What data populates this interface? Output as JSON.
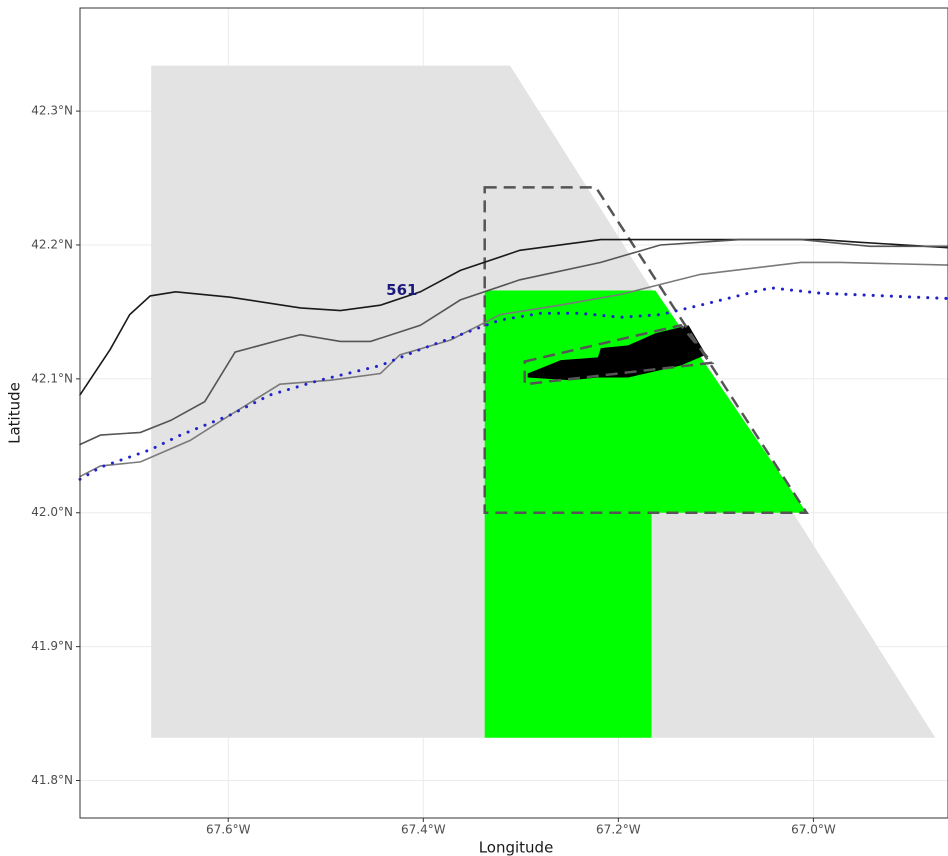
{
  "chart_data": {
    "type": "map",
    "x_label": "Longitude",
    "y_label": "Latitude",
    "xlim": [
      -67.752,
      -66.862
    ],
    "ylim": [
      41.772,
      42.377
    ],
    "xticks": [
      {
        "value": -67.6,
        "label": "67.6°W"
      },
      {
        "value": -67.4,
        "label": "67.4°W"
      },
      {
        "value": -67.2,
        "label": "67.2°W"
      },
      {
        "value": -67.0,
        "label": "67.0°W"
      }
    ],
    "yticks": [
      {
        "value": 41.8,
        "label": "41.8°N"
      },
      {
        "value": 41.9,
        "label": "41.9°N"
      },
      {
        "value": 42.0,
        "label": "42.0°N"
      },
      {
        "value": 42.1,
        "label": "42.1°N"
      },
      {
        "value": 42.2,
        "label": "42.2°N"
      },
      {
        "value": 42.3,
        "label": "42.3°N"
      }
    ],
    "grid": true,
    "polygons": [
      {
        "fill": "#e3e3e3",
        "stroke": "none",
        "dashed": false,
        "lon": [
          -67.679,
          -67.311,
          -66.875,
          -67.679
        ],
        "lat": [
          42.334,
          42.334,
          41.832,
          41.832
        ]
      },
      {
        "fill": "#00ff00",
        "stroke": "none",
        "dashed": false,
        "lon": [
          -67.337,
          -67.162,
          -67.007,
          -67.166,
          -67.166,
          -67.337
        ],
        "lat": [
          42.166,
          42.166,
          42.0,
          42.0,
          41.832,
          41.832
        ]
      },
      {
        "fill": "#000000",
        "stroke": "none",
        "dashed": false,
        "lon": [
          -67.293,
          -67.259,
          -67.221,
          -67.218,
          -67.19,
          -67.162,
          -67.128,
          -67.11,
          -67.136,
          -67.19,
          -67.221,
          -67.249,
          -67.293
        ],
        "lat": [
          42.104,
          42.114,
          42.116,
          42.123,
          42.125,
          42.134,
          42.14,
          42.118,
          42.11,
          42.101,
          42.101,
          42.099,
          42.101
        ]
      },
      {
        "fill": "none",
        "stroke": "#555555",
        "dashed": true,
        "lon": [
          -67.296,
          -67.136,
          -67.104,
          -67.296
        ],
        "lat": [
          42.113,
          42.14,
          42.112,
          42.096
        ]
      },
      {
        "fill": "none",
        "stroke": "#555555",
        "dashed": true,
        "lon": [
          -67.337,
          -67.223,
          -67.007,
          -67.337
        ],
        "lat": [
          42.243,
          42.243,
          42.0,
          42.0
        ]
      }
    ],
    "lines": [
      {
        "color": "#1a1a1a",
        "dotted": false,
        "lon": [
          -67.752,
          -67.721,
          -67.701,
          -67.68,
          -67.654,
          -67.598,
          -67.526,
          -67.485,
          -67.444,
          -67.403,
          -67.362,
          -67.301,
          -67.218,
          -67.116,
          -66.993,
          -66.952,
          -66.862
        ],
        "lat": [
          42.088,
          42.122,
          42.148,
          42.162,
          42.165,
          42.161,
          42.153,
          42.151,
          42.155,
          42.165,
          42.181,
          42.196,
          42.204,
          42.204,
          42.204,
          42.202,
          42.198
        ]
      },
      {
        "color": "#555555",
        "dotted": false,
        "lon": [
          -67.752,
          -67.731,
          -67.69,
          -67.659,
          -67.624,
          -67.593,
          -67.547,
          -67.526,
          -67.485,
          -67.454,
          -67.403,
          -67.362,
          -67.301,
          -67.218,
          -67.157,
          -67.075,
          -67.013,
          -66.942,
          -66.862
        ],
        "lat": [
          42.051,
          42.058,
          42.06,
          42.069,
          42.083,
          42.12,
          42.129,
          42.133,
          42.128,
          42.128,
          42.14,
          42.159,
          42.174,
          42.187,
          42.2,
          42.204,
          42.204,
          42.199,
          42.199
        ]
      },
      {
        "color": "#7a7a7a",
        "dotted": false,
        "lon": [
          -67.752,
          -67.731,
          -67.69,
          -67.639,
          -67.598,
          -67.547,
          -67.495,
          -67.444,
          -67.424,
          -67.372,
          -67.321,
          -67.26,
          -67.198,
          -67.116,
          -67.013,
          -66.972,
          -66.862
        ],
        "lat": [
          42.027,
          42.035,
          42.038,
          42.054,
          42.073,
          42.096,
          42.099,
          42.104,
          42.118,
          42.129,
          42.148,
          42.155,
          42.163,
          42.178,
          42.187,
          42.187,
          42.185
        ]
      },
      {
        "color": "#2222cc",
        "dotted": true,
        "lon": [
          -67.752,
          -67.731,
          -67.68,
          -67.649,
          -67.598,
          -67.557,
          -67.506,
          -67.444,
          -67.403,
          -67.362,
          -67.321,
          -67.28,
          -67.239,
          -67.198,
          -67.157,
          -67.116,
          -67.044,
          -66.993,
          -66.862
        ],
        "lat": [
          42.025,
          42.034,
          42.047,
          42.058,
          42.073,
          42.088,
          42.099,
          42.11,
          42.122,
          42.133,
          42.144,
          42.149,
          42.149,
          42.146,
          42.148,
          42.155,
          42.168,
          42.164,
          42.16
        ]
      }
    ],
    "annotation": {
      "text": "561",
      "lon": -67.422,
      "lat": 42.166,
      "color": "#1a1a7a"
    }
  }
}
